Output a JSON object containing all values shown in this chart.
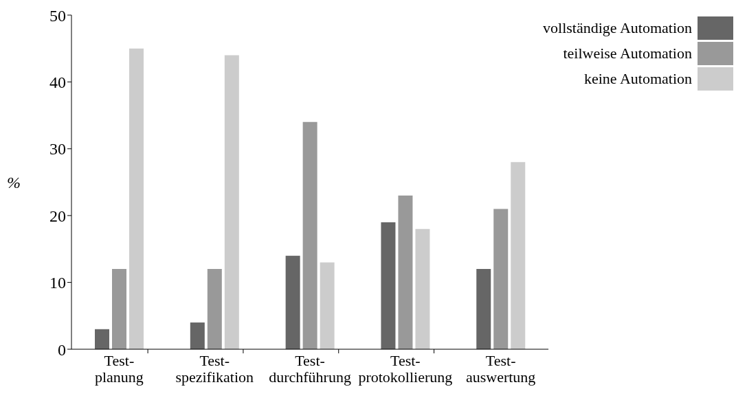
{
  "chart_data": {
    "type": "bar",
    "ylabel": "%",
    "categories": [
      "Test-\nplanung",
      "Test-\nspezifikation",
      "Test-\ndurchführung",
      "Test-\nprotokollierung",
      "Test-\nauswertung"
    ],
    "series": [
      {
        "name": "vollständige Automation",
        "color": "#666666",
        "values": [
          3,
          4,
          14,
          19,
          12
        ]
      },
      {
        "name": "teilweise Automation",
        "color": "#999999",
        "values": [
          12,
          12,
          34,
          23,
          21
        ]
      },
      {
        "name": "keine Automation",
        "color": "#cccccc",
        "values": [
          45,
          44,
          13,
          18,
          28
        ]
      }
    ],
    "ylim": [
      0,
      50
    ],
    "yticks": [
      0,
      10,
      20,
      30,
      40,
      50
    ],
    "grid": false,
    "legend": "top right"
  }
}
